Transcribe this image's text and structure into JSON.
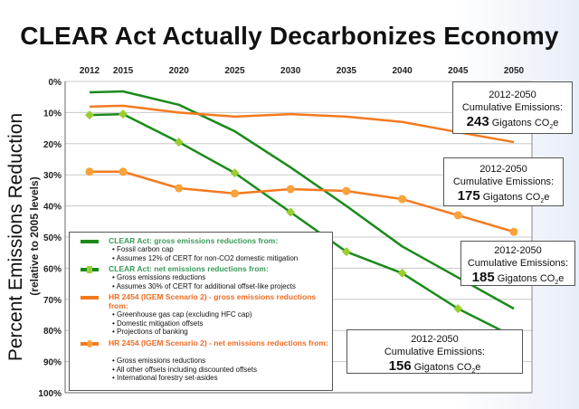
{
  "chart_data": {
    "type": "line",
    "title": "CLEAR Act Actually Decarbonizes Economy",
    "ylabel": "Percent Emissions Reduction",
    "ylabel_sub": "(relative to 2005 levels)",
    "x": [
      2012,
      2015,
      2020,
      2025,
      2030,
      2035,
      2040,
      2045,
      2050
    ],
    "x_tick_labels": [
      "2012",
      "2015",
      "2020",
      "2025",
      "2030",
      "2035",
      "2040",
      "2045",
      "2050"
    ],
    "x_axis_position": "top",
    "ylim": [
      0,
      100
    ],
    "y_inverted": true,
    "y_tick_labels": [
      "0%",
      "10%",
      "20%",
      "30%",
      "40%",
      "50%",
      "60%",
      "70%",
      "80%",
      "90%",
      "100%"
    ],
    "grid": true,
    "series": [
      {
        "name": "CLEAR Act: gross emissions reductions from:",
        "color": "#1a8a1a",
        "marker": "none",
        "values": [
          3.5,
          3.2,
          7.5,
          16,
          27.6,
          40,
          53,
          63,
          73
        ],
        "bullets": [
          "Fossil carbon cap",
          "Assumes 12% of CERT for non-CO2 domestic mitigation"
        ]
      },
      {
        "name": "CLEAR Act: net emissions reductions from:",
        "color": "#1a8a1a",
        "marker": "diamond",
        "marker_color": "#9acd32",
        "values": [
          10.8,
          10.5,
          19.5,
          29.4,
          42,
          54.7,
          61.6,
          73,
          82
        ],
        "bullets": [
          "Gross emissions reductions",
          "Assumes 30% of CERT for additional offset-like projects"
        ]
      },
      {
        "name": "HR 2454 (IGEM Scenario 2) - gross emissions reductions from:",
        "color": "#f47a20",
        "marker": "none",
        "values": [
          8.1,
          7.8,
          10,
          11.3,
          10.5,
          11.3,
          13,
          16.3,
          19.5
        ],
        "bullets": [
          "Greenhouse gas cap (excluding HFC cap)",
          "Domestic mitigation offsets",
          "Projections of banking"
        ]
      },
      {
        "name": "HR 2454 (IGEM Scenario 2) - net emissions reductions from:",
        "color": "#f47a20",
        "marker": "circle",
        "marker_color": "#f9a23a",
        "values": [
          29,
          29,
          34.3,
          36,
          34.6,
          35.2,
          37.8,
          43,
          48.3
        ],
        "bullets": [
          "Gross emissions reductions",
          "All other offsets including discounted offsets",
          "International forestry set-asides"
        ]
      }
    ],
    "annotations": [
      {
        "period": "2012-2050",
        "label": "Cumulative Emissions:",
        "value": "243",
        "unit": "Gigatons CO",
        "sub": "2",
        "suffix": "e"
      },
      {
        "period": "2012-2050",
        "label": "Cumulative Emissions:",
        "value": "175",
        "unit": "Gigatons CO",
        "sub": "2",
        "suffix": "e"
      },
      {
        "period": "2012-2050",
        "label": "Cumulative Emissions:",
        "value": "185",
        "unit": "Gigatons CO",
        "sub": "2",
        "suffix": "e"
      },
      {
        "period": "2012-2050",
        "label": "Cumulative Emissions:",
        "value": "156",
        "unit": "Gigatons CO",
        "sub": "2",
        "suffix": "e"
      }
    ]
  }
}
